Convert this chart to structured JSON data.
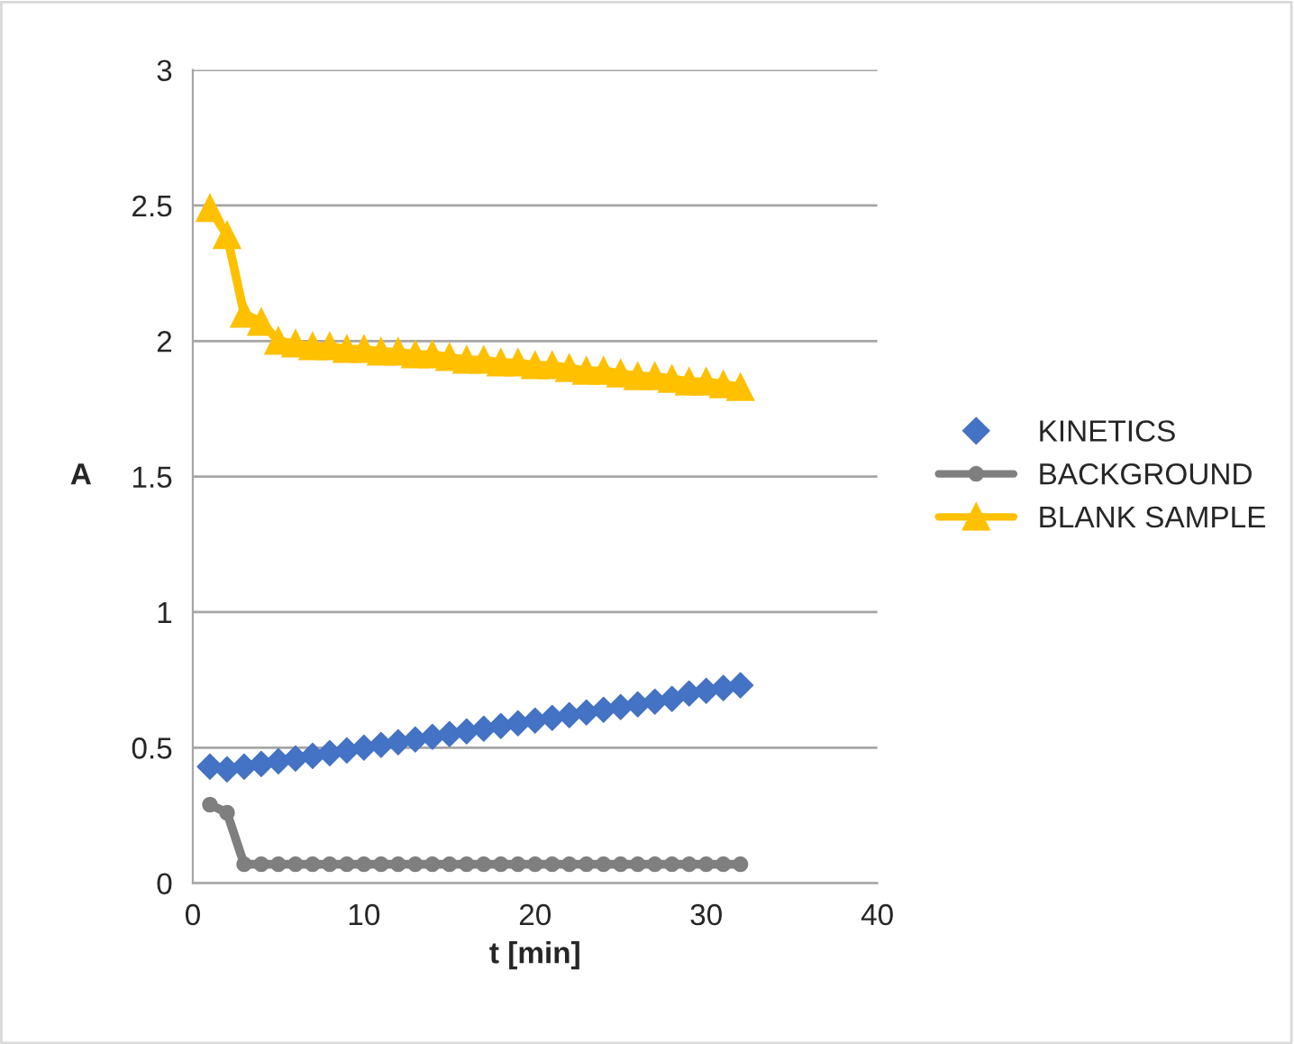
{
  "chart_data": {
    "type": "line",
    "xlabel": "t [min]",
    "ylabel": "A",
    "x": [
      1,
      2,
      3,
      4,
      5,
      6,
      7,
      8,
      9,
      10,
      11,
      12,
      13,
      14,
      15,
      16,
      17,
      18,
      19,
      20,
      21,
      22,
      23,
      24,
      25,
      26,
      27,
      28,
      29,
      30,
      31,
      32
    ],
    "series": [
      {
        "name": "KINETICS",
        "type": "scatter",
        "marker": "diamond",
        "color": "#4472c4",
        "values": [
          0.43,
          0.42,
          0.43,
          0.44,
          0.45,
          0.46,
          0.47,
          0.48,
          0.49,
          0.5,
          0.51,
          0.52,
          0.53,
          0.54,
          0.55,
          0.56,
          0.57,
          0.58,
          0.59,
          0.6,
          0.61,
          0.62,
          0.63,
          0.64,
          0.65,
          0.66,
          0.67,
          0.68,
          0.7,
          0.71,
          0.72,
          0.73
        ]
      },
      {
        "name": "BACKGROUND",
        "marker": "circle",
        "color": "#7f7f7f",
        "values": [
          0.29,
          0.26,
          0.07,
          0.07,
          0.07,
          0.07,
          0.07,
          0.07,
          0.07,
          0.07,
          0.07,
          0.07,
          0.07,
          0.07,
          0.07,
          0.07,
          0.07,
          0.07,
          0.07,
          0.07,
          0.07,
          0.07,
          0.07,
          0.07,
          0.07,
          0.07,
          0.07,
          0.07,
          0.07,
          0.07,
          0.07,
          0.07
        ]
      },
      {
        "name": "BLANK SAMPLE",
        "marker": "triangle",
        "color": "#ffc000",
        "values": [
          2.49,
          2.39,
          2.1,
          2.07,
          2.0,
          1.99,
          1.98,
          1.98,
          1.97,
          1.97,
          1.96,
          1.96,
          1.95,
          1.95,
          1.94,
          1.93,
          1.93,
          1.92,
          1.92,
          1.91,
          1.91,
          1.9,
          1.89,
          1.89,
          1.88,
          1.87,
          1.87,
          1.86,
          1.85,
          1.85,
          1.84,
          1.83
        ]
      }
    ],
    "xlim": [
      0,
      40
    ],
    "xticks": [
      0,
      10,
      20,
      30,
      40
    ],
    "ylim": [
      0,
      3
    ],
    "yticks": [
      0,
      0.5,
      1,
      1.5,
      2,
      2.5,
      3
    ],
    "grid": "y",
    "legend": "right"
  }
}
